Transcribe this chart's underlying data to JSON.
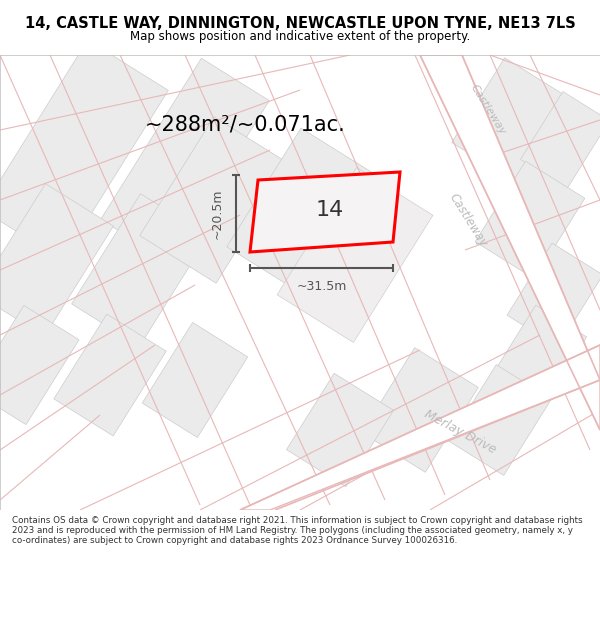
{
  "title": "14, CASTLE WAY, DINNINGTON, NEWCASTLE UPON TYNE, NE13 7LS",
  "subtitle": "Map shows position and indicative extent of the property.",
  "area_text": "~288m²/~0.071ac.",
  "width_text": "~31.5m",
  "height_text": "~20.5m",
  "number_text": "14",
  "footer_text": "Contains OS data © Crown copyright and database right 2021. This information is subject to Crown copyright and database rights 2023 and is reproduced with the permission of HM Land Registry. The polygons (including the associated geometry, namely x, y co-ordinates) are subject to Crown copyright and database rights 2023 Ordnance Survey 100026316.",
  "bg_color": "#ffffff",
  "map_bg": "#f7f5f5",
  "block_color": "#ebebeb",
  "block_edge": "#cccccc",
  "road_fill": "#ffffff",
  "pink_line": "#e8b8b8",
  "highlight_color": "#ff0000",
  "dim_line_color": "#555555",
  "road_label_color": "#bbbbbb",
  "title_color": "#000000",
  "footer_color": "#333333",
  "castleway_label": "Castleway",
  "merlay_label": "Merlay Drive"
}
